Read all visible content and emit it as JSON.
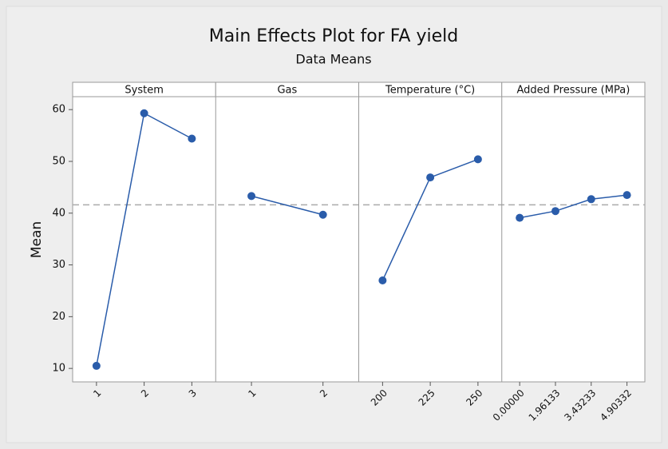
{
  "chart_data": {
    "type": "line",
    "title": "Main Effects Plot for FA yield",
    "subtitle": "Data Means",
    "ylabel": "Mean",
    "ylim": [
      7.4,
      62.5
    ],
    "yticks": [
      10,
      20,
      30,
      40,
      50,
      60
    ],
    "reference_line": 41.6,
    "color": "#2a5caa",
    "panels": [
      {
        "name": "System",
        "categories": [
          "1",
          "2",
          "3"
        ],
        "values": [
          10.5,
          59.3,
          54.4
        ]
      },
      {
        "name": "Gas",
        "categories": [
          "1",
          "2"
        ],
        "values": [
          43.3,
          39.7
        ]
      },
      {
        "name": "Temperature (°C)",
        "categories": [
          "200",
          "225",
          "250"
        ],
        "values": [
          27.0,
          46.9,
          50.4
        ]
      },
      {
        "name": "Added Pressure (MPa)",
        "categories": [
          "0.00000",
          "1.96133",
          "3.43233",
          "4.90332"
        ],
        "values": [
          39.1,
          40.4,
          42.7,
          43.5
        ]
      }
    ]
  }
}
